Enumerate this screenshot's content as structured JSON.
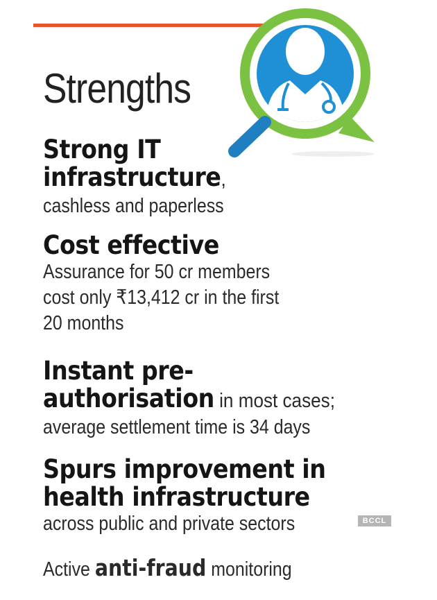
{
  "title": "Strengths",
  "items": [
    {
      "head": "Strong IT",
      "head2": "infrastructure",
      "head2_suffix": ",",
      "body": "cashless and paperless"
    },
    {
      "head": "Cost effective",
      "body1": "Assurance for 50 cr members",
      "body2": "cost only ₹13,412 cr in the first",
      "body3": "20 months"
    },
    {
      "head": "Instant pre-",
      "head2": "authorisation",
      "head2_suffix": " in most cases;",
      "body": "average settlement time is 34 days"
    },
    {
      "head": "Spurs improvement in",
      "head2": "health infrastructure",
      "body": "across public and private sectors"
    },
    {
      "prefix": "Active ",
      "bold": "anti-fraud",
      "suffix": " monitoring"
    }
  ],
  "watermark": "BCCL",
  "colors": {
    "accent_rule": "#e8552d",
    "emblem_ring": "#7cc242",
    "emblem_fill": "#1f8fd6",
    "handle": "#1f7fc0"
  },
  "icons": {
    "emblem": "doctor-magnifier-icon"
  }
}
